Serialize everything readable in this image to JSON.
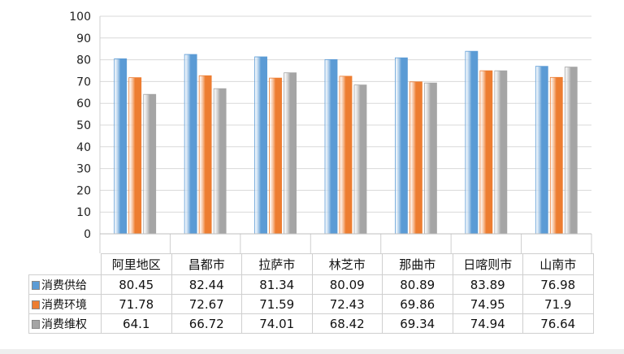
{
  "chart_data": {
    "type": "bar",
    "categories": [
      "阿里地区",
      "昌都市",
      "拉萨市",
      "林芝市",
      "那曲市",
      "日喀则市",
      "山南市"
    ],
    "series": [
      {
        "name": "消费供给",
        "values": [
          80.45,
          82.44,
          81.34,
          80.09,
          80.89,
          83.89,
          76.98
        ],
        "color": "#5b9bd5"
      },
      {
        "name": "消费环境",
        "values": [
          71.78,
          72.67,
          71.59,
          72.43,
          69.86,
          74.95,
          71.9
        ],
        "color": "#ed7d31"
      },
      {
        "name": "消费维权",
        "values": [
          64.1,
          66.72,
          74.01,
          68.42,
          69.34,
          74.94,
          76.64
        ],
        "color": "#a5a5a5"
      }
    ],
    "ylim": [
      0,
      100
    ],
    "yticks": [
      0,
      10,
      20,
      30,
      40,
      50,
      60,
      70,
      80,
      90,
      100
    ],
    "grid": true,
    "legend": "data-table"
  },
  "value_labels": [
    [
      "80.45",
      "82.44",
      "81.34",
      "80.09",
      "80.89",
      "83.89",
      "76.98"
    ],
    [
      "71.78",
      "72.67",
      "71.59",
      "72.43",
      "69.86",
      "74.95",
      "71.9"
    ],
    [
      "64.1",
      "66.72",
      "74.01",
      "68.42",
      "69.34",
      "74.94",
      "76.64"
    ]
  ]
}
